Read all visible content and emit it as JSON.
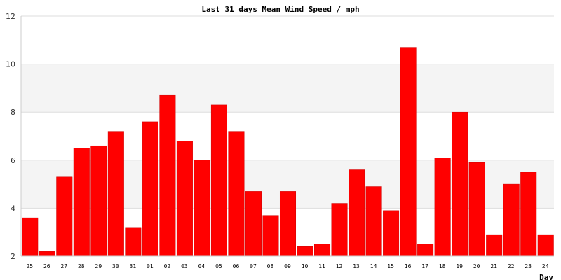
{
  "chart_data": {
    "type": "bar",
    "title": "Last 31 days Mean Wind Speed / mph",
    "xlabel": "Day",
    "ylabel": "",
    "ylim": [
      2,
      12
    ],
    "yticks": [
      2,
      4,
      6,
      8,
      10,
      12
    ],
    "grid": true,
    "categories": [
      "25",
      "26",
      "27",
      "28",
      "29",
      "30",
      "31",
      "01",
      "02",
      "03",
      "04",
      "05",
      "06",
      "07",
      "08",
      "09",
      "10",
      "11",
      "12",
      "13",
      "14",
      "15",
      "16",
      "17",
      "18",
      "19",
      "20",
      "21",
      "22",
      "23",
      "24"
    ],
    "values": [
      3.6,
      2.2,
      5.3,
      6.5,
      6.6,
      7.2,
      3.2,
      7.6,
      8.7,
      6.8,
      6.0,
      8.3,
      7.2,
      4.7,
      3.7,
      4.7,
      2.4,
      2.5,
      4.2,
      5.6,
      4.9,
      3.9,
      10.7,
      2.5,
      6.1,
      8.0,
      5.9,
      2.9,
      5.0,
      5.5,
      2.9
    ]
  },
  "colors": {
    "bar_fill": "#ff0000",
    "bar_edge": "#cc0000",
    "band_fill": "#f4f4f4",
    "grid_line": "#dddddd",
    "axis_line": "#cccccc"
  }
}
